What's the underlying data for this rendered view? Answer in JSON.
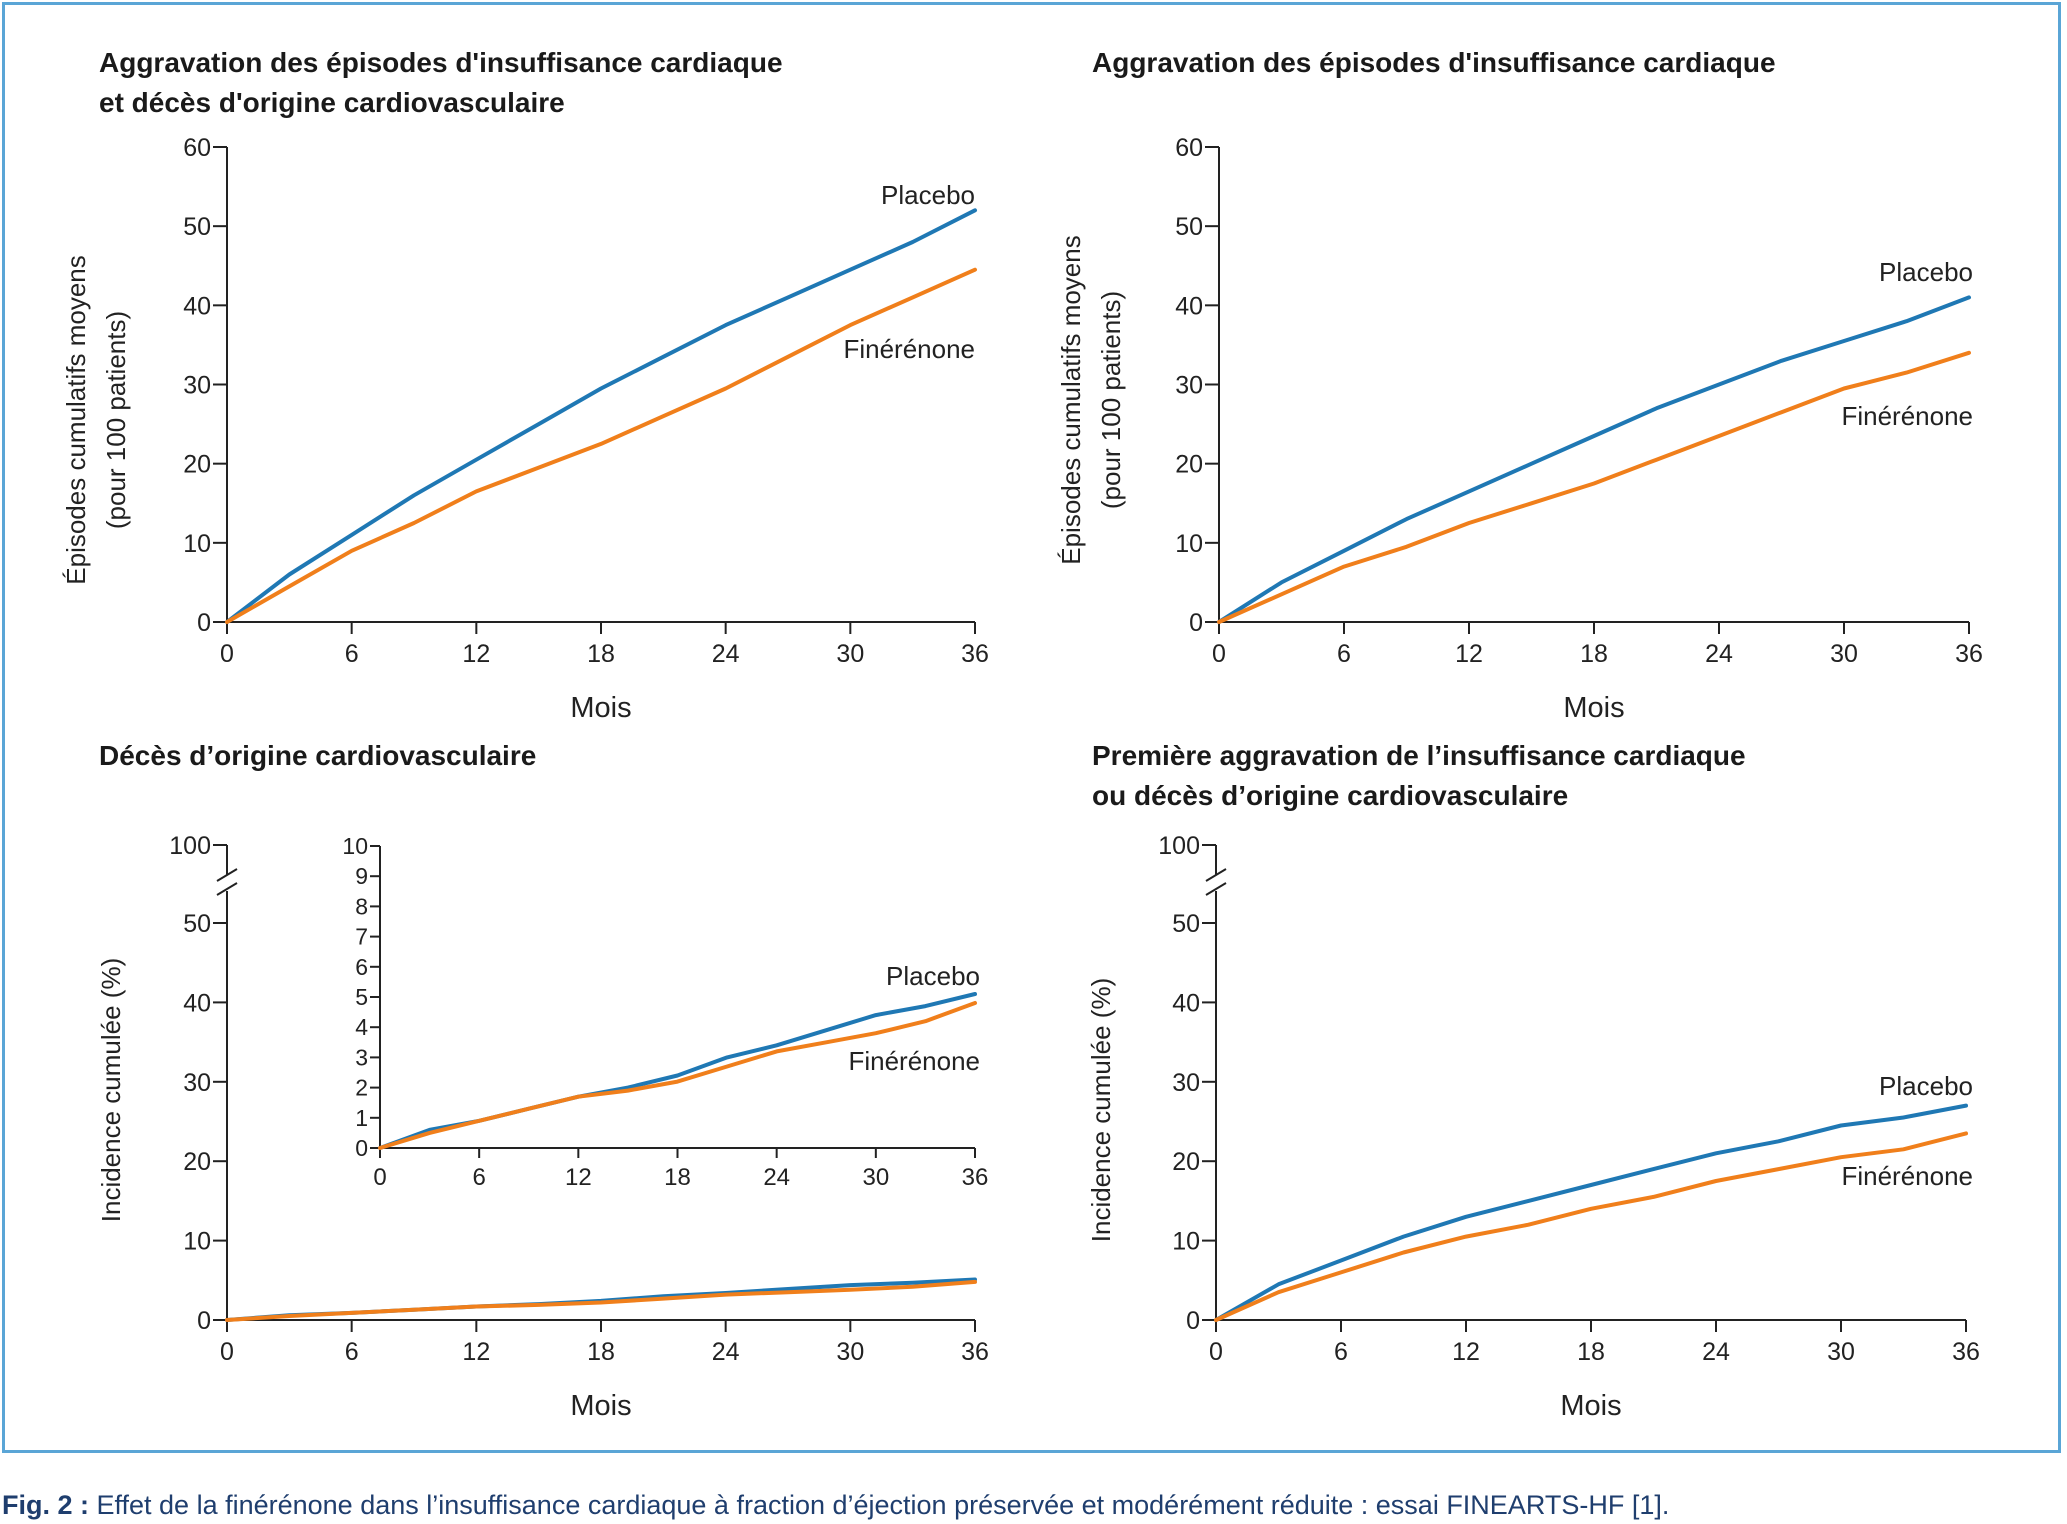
{
  "caption": {
    "label": "Fig. 2 :",
    "text": " Effet de la finérénone dans l’insuffisance cardiaque à fraction d’éjection préservée et modérément réduite : essai FINEARTS-HF [1]."
  },
  "colors": {
    "placebo": "#1f78b4",
    "finerenone": "#f07f1b",
    "axis": "#222222",
    "frame": "#5aa5d6"
  },
  "chart_data": [
    {
      "type": "line",
      "title": [
        "Aggravation des épisodes d'insuffisance cardiaque",
        "et décès d'origine cardiovasculaire"
      ],
      "xlabel": "Mois",
      "ylabel": [
        "Épisodes cumulatifs moyens",
        "(pour 100 patients)"
      ],
      "xlim": [
        0,
        36
      ],
      "ylim": [
        0,
        60
      ],
      "xticks": [
        0,
        6,
        12,
        18,
        24,
        30,
        36
      ],
      "yticks": [
        0,
        10,
        20,
        30,
        40,
        50,
        60
      ],
      "x": [
        0,
        3,
        6,
        9,
        12,
        15,
        18,
        21,
        24,
        27,
        30,
        33,
        36
      ],
      "series": [
        {
          "name": "Placebo",
          "values": [
            0,
            6,
            11,
            16,
            20.5,
            25,
            29.5,
            33.5,
            37.5,
            41,
            44.5,
            48,
            52
          ]
        },
        {
          "name": "Finérénone",
          "values": [
            0,
            4.5,
            9,
            12.5,
            16.5,
            19.5,
            22.5,
            26,
            29.5,
            33.5,
            37.5,
            41,
            44.5
          ]
        }
      ]
    },
    {
      "type": "line",
      "title": [
        "Aggravation des épisodes d'insuffisance cardiaque"
      ],
      "xlabel": "Mois",
      "ylabel": [
        "Épisodes cumulatifs moyens",
        "(pour 100 patients)"
      ],
      "xlim": [
        0,
        36
      ],
      "ylim": [
        0,
        60
      ],
      "xticks": [
        0,
        6,
        12,
        18,
        24,
        30,
        36
      ],
      "yticks": [
        0,
        10,
        20,
        30,
        40,
        50,
        60
      ],
      "x": [
        0,
        3,
        6,
        9,
        12,
        15,
        18,
        21,
        24,
        27,
        30,
        33,
        36
      ],
      "series": [
        {
          "name": "Placebo",
          "values": [
            0,
            5,
            9,
            13,
            16.5,
            20,
            23.5,
            27,
            30,
            33,
            35.5,
            38,
            41
          ]
        },
        {
          "name": "Finérénone",
          "values": [
            0,
            3.5,
            7,
            9.5,
            12.5,
            15,
            17.5,
            20.5,
            23.5,
            26.5,
            29.5,
            31.5,
            34
          ]
        }
      ]
    },
    {
      "type": "line",
      "title": [
        "Décès d’origine cardiovasculaire"
      ],
      "xlabel": "Mois",
      "ylabel": [
        "Incidence cumulée (%)"
      ],
      "xlim": [
        0,
        36
      ],
      "ylim": [
        0,
        50
      ],
      "axis_break_top_label": "100",
      "xticks": [
        0,
        6,
        12,
        18,
        24,
        30,
        36
      ],
      "yticks": [
        0,
        10,
        20,
        30,
        40,
        50
      ],
      "x": [
        0,
        3,
        6,
        9,
        12,
        15,
        18,
        21,
        24,
        27,
        30,
        33,
        36
      ],
      "series": [
        {
          "name": "Placebo",
          "values": [
            0,
            0.6,
            0.9,
            1.3,
            1.7,
            2.0,
            2.4,
            3.0,
            3.4,
            3.9,
            4.4,
            4.7,
            5.1
          ]
        },
        {
          "name": "Finérénone",
          "values": [
            0,
            0.5,
            0.9,
            1.3,
            1.7,
            1.9,
            2.2,
            2.7,
            3.2,
            3.5,
            3.8,
            4.2,
            4.8
          ]
        }
      ],
      "inset": {
        "xlim": [
          0,
          36
        ],
        "ylim": [
          0,
          10
        ],
        "xticks": [
          0,
          6,
          12,
          18,
          24,
          30,
          36
        ],
        "yticks": [
          0,
          1,
          2,
          3,
          4,
          5,
          6,
          7,
          8,
          9,
          10
        ]
      }
    },
    {
      "type": "line",
      "title": [
        "Première aggravation de l’insuffisance cardiaque",
        "ou décès d’origine cardiovasculaire"
      ],
      "xlabel": "Mois",
      "ylabel": [
        "Incidence cumulée (%)"
      ],
      "xlim": [
        0,
        36
      ],
      "ylim": [
        0,
        50
      ],
      "axis_break_top_label": "100",
      "xticks": [
        0,
        6,
        12,
        18,
        24,
        30,
        36
      ],
      "yticks": [
        0,
        10,
        20,
        30,
        40,
        50
      ],
      "x": [
        0,
        3,
        6,
        9,
        12,
        15,
        18,
        21,
        24,
        27,
        30,
        33,
        36
      ],
      "series": [
        {
          "name": "Placebo",
          "values": [
            0,
            4.5,
            7.5,
            10.5,
            13,
            15,
            17,
            19,
            21,
            22.5,
            24.5,
            25.5,
            27
          ]
        },
        {
          "name": "Finérénone",
          "values": [
            0,
            3.5,
            6,
            8.5,
            10.5,
            12,
            14,
            15.5,
            17.5,
            19,
            20.5,
            21.5,
            23.5
          ]
        }
      ]
    }
  ]
}
